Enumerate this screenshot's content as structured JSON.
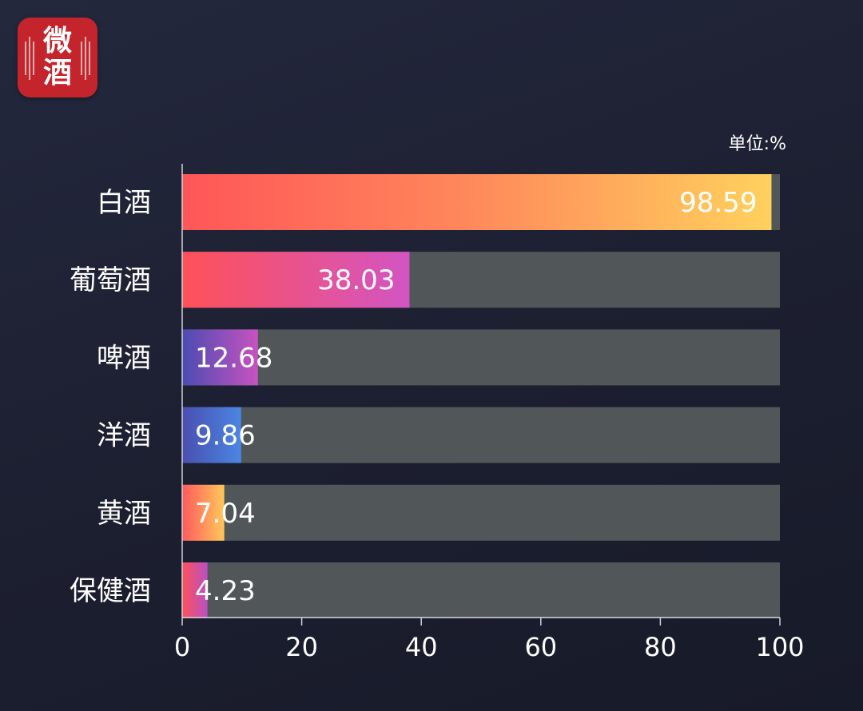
{
  "logo": {
    "text": "微\n酒"
  },
  "unit_label": "单位:%",
  "chart_data": {
    "type": "bar",
    "orientation": "horizontal",
    "categories": [
      "白酒",
      "葡萄酒",
      "啤酒",
      "洋酒",
      "黄酒",
      "保健酒"
    ],
    "values": [
      98.59,
      38.03,
      12.68,
      9.86,
      7.04,
      4.23
    ],
    "data_labels": [
      "98.59",
      "38.03",
      "12.68",
      "9.86",
      "7.04",
      "4.23"
    ],
    "xlim": [
      0,
      100
    ],
    "xticks": [
      0,
      20,
      40,
      60,
      80,
      100
    ],
    "grid": false,
    "legend": "none",
    "colors": {
      "track": "#515658",
      "axis": "#cfd2d8",
      "label": "#ffffff",
      "bar_gradients": [
        [
          "#ff5658",
          "#ff8a5b",
          "#ffd15d"
        ],
        [
          "#ff5158",
          "#d255c3"
        ],
        [
          "#4c4bb2",
          "#c653c0"
        ],
        [
          "#4a4fb0",
          "#4b86e3"
        ],
        [
          "#ff5a5c",
          "#ffc75b"
        ],
        [
          "#ff5158",
          "#b84fc4"
        ]
      ]
    }
  }
}
